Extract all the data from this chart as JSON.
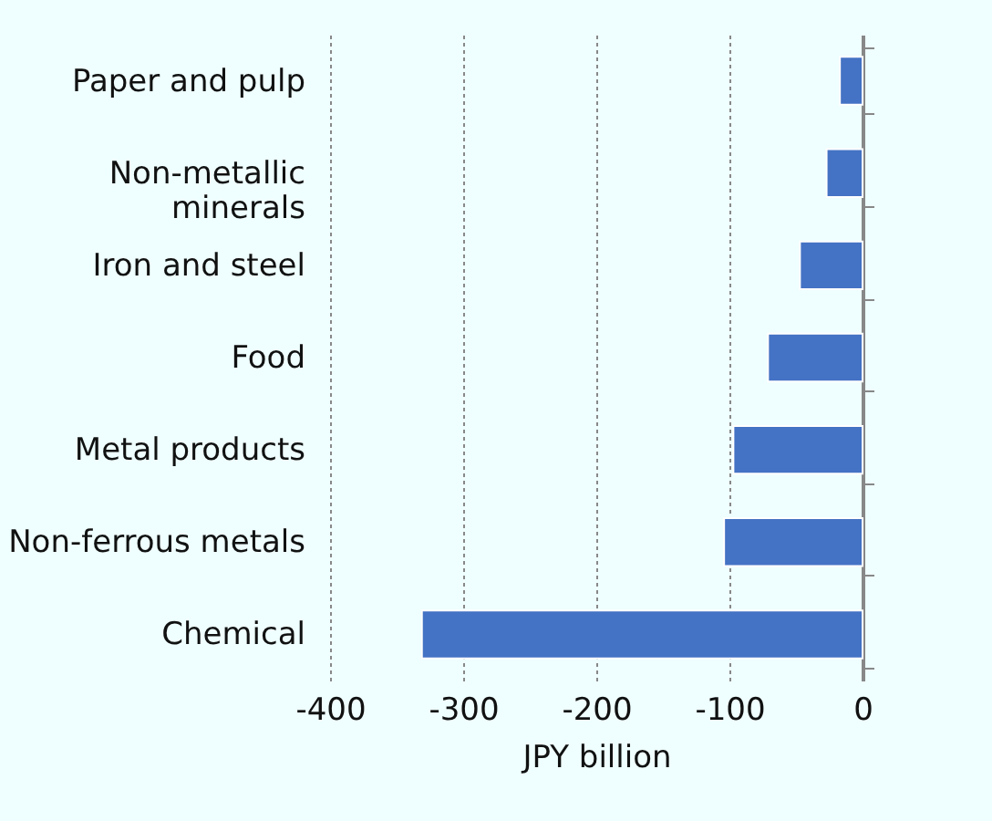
{
  "chart_data": {
    "type": "bar",
    "orientation": "horizontal",
    "xlabel": "JPY billion",
    "categories": [
      "Paper and pulp",
      "Non-metallic minerals",
      "Iron and steel",
      "Food",
      "Metal products",
      "Non-ferrous metals",
      "Chemical"
    ],
    "values": [
      -17,
      -27,
      -47,
      -71,
      -97,
      -104,
      -331
    ],
    "color": "#4472c4",
    "xlim": [
      -400,
      0
    ],
    "xticks": [
      -400,
      -300,
      -200,
      -100,
      0
    ],
    "grid": "x"
  }
}
